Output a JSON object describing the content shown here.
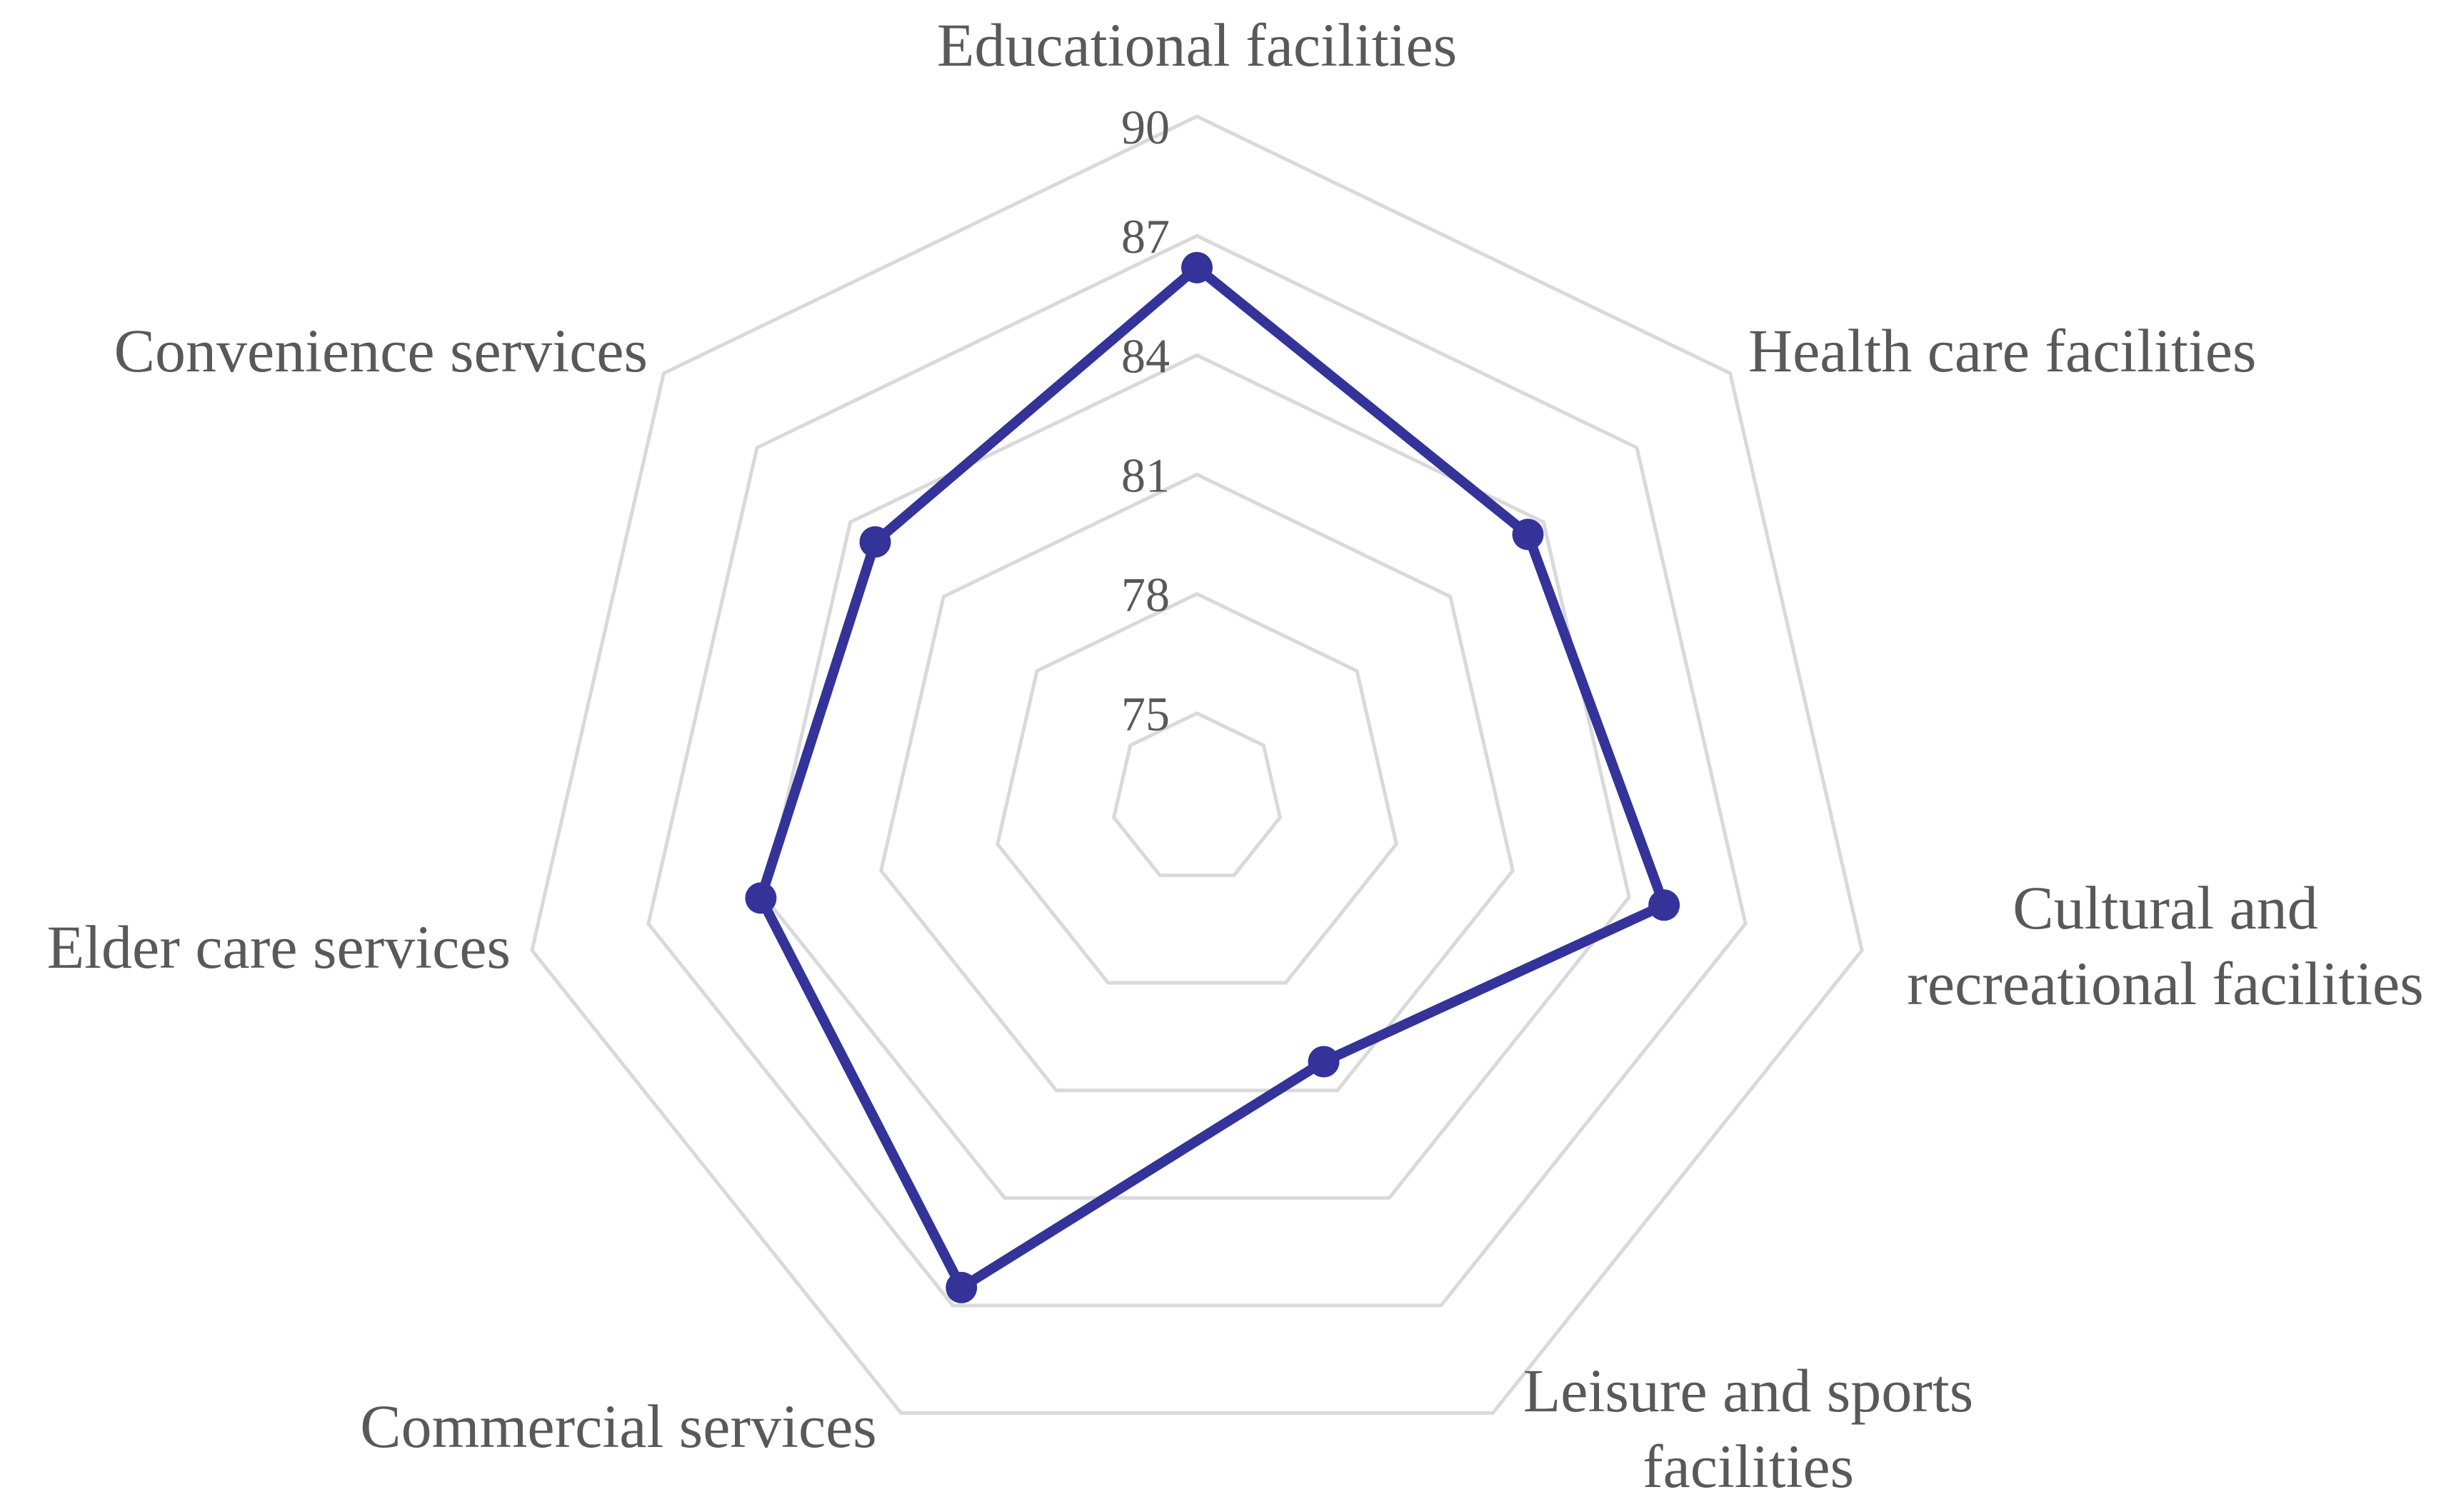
{
  "chart_data": {
    "type": "radar",
    "title": "",
    "categories": [
      [
        "Educational facilities"
      ],
      [
        "Health care facilities"
      ],
      [
        "Cultural and",
        "recreational facilities"
      ],
      [
        "Leisure and sports",
        "facilities"
      ],
      [
        "Commercial services"
      ],
      [
        "Elder care services"
      ],
      [
        "Convenience services"
      ]
    ],
    "category_names": [
      "Educational facilities",
      "Health care facilities",
      "Cultural and recreational facilities",
      "Leisure and sports facilities",
      "Commercial services",
      "Elder care services",
      "Convenience services"
    ],
    "rlim": [
      75,
      90
    ],
    "ticks": [
      75,
      78,
      81,
      84,
      87,
      90
    ],
    "tick_labels": [
      "75",
      "78",
      "81",
      "84",
      "87",
      "90"
    ],
    "grid": true,
    "legend": "none",
    "series": [
      {
        "values": [
          86.2,
          83.5,
          84.9,
          80.2,
          86.5,
          84.1,
          83.2
        ],
        "color": "#333399"
      }
    ]
  }
}
